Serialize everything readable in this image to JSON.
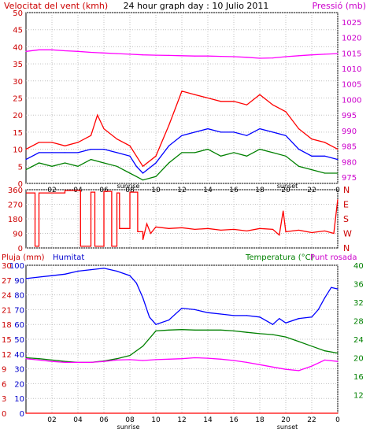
{
  "header": {
    "left_label": "Velocitat del vent (kmh)",
    "center_title": "24 hour graph day : 10 Julio 2011",
    "right_label": "Pressió (mb)"
  },
  "colors": {
    "wind_gust": "#ff0000",
    "wind_avg": "#0000ff",
    "wind_low": "#008000",
    "pressure": "#ff00ff",
    "direction": "#ff0000",
    "humidity": "#0000ff",
    "temperature": "#008000",
    "dewpoint": "#ff00ff",
    "rain": "#ff0000",
    "axis_dark_red": "#cc0000",
    "axis_magenta": "#cc00cc",
    "axis_blue": "#0000cc",
    "axis_green": "#008000",
    "grid": "#c0c0c0"
  },
  "chart_data": [
    {
      "type": "line",
      "panel": "wind-pressure",
      "ylabel_left": "Velocitat del vent (kmh)",
      "ylabel_right": "Pressió (mb)",
      "left_ticks": [
        0,
        5,
        10,
        15,
        20,
        25,
        30,
        35,
        40,
        45,
        50
      ],
      "right_ticks": [
        975,
        980,
        985,
        990,
        995,
        1000,
        1005,
        1010,
        1015,
        1020,
        1025
      ],
      "ylim_left": [
        0,
        50
      ],
      "ylim_right": [
        973,
        1028
      ],
      "x_ticks": [
        "02",
        "04",
        "06",
        "08",
        "10",
        "12",
        "14",
        "16",
        "18",
        "20",
        "22",
        "0"
      ],
      "annotations": [
        "sunrise",
        "sunset"
      ],
      "grid": true,
      "series": [
        {
          "key": "gust",
          "color": "#ff0000",
          "x": [
            0,
            1,
            2,
            3,
            4,
            5,
            5.5,
            6,
            7,
            8,
            8.5,
            9,
            10,
            11,
            11.5,
            12,
            13,
            14,
            15,
            16,
            17,
            18,
            19,
            20,
            21,
            22,
            23,
            24
          ],
          "values": [
            10,
            12,
            12,
            11,
            12,
            14,
            20,
            16,
            13,
            11,
            8,
            5,
            8,
            17,
            22,
            27,
            26,
            25,
            24,
            24,
            23,
            26,
            23,
            21,
            16,
            13,
            12,
            10
          ]
        },
        {
          "key": "avg",
          "color": "#0000ff",
          "x": [
            0,
            1,
            2,
            3,
            4,
            5,
            6,
            7,
            8,
            8.5,
            9,
            10,
            11,
            12,
            13,
            14,
            15,
            16,
            17,
            18,
            19,
            20,
            21,
            22,
            23,
            24
          ],
          "values": [
            7,
            9,
            9,
            9,
            9,
            10,
            10,
            9,
            8,
            5,
            3,
            6,
            11,
            14,
            15,
            16,
            15,
            15,
            14,
            16,
            15,
            14,
            10,
            8,
            8,
            7
          ]
        },
        {
          "key": "low",
          "color": "#008000",
          "x": [
            0,
            1,
            2,
            3,
            4,
            5,
            6,
            7,
            8,
            8.5,
            9,
            10,
            11,
            12,
            13,
            14,
            15,
            16,
            17,
            18,
            19,
            20,
            21,
            22,
            23,
            24
          ],
          "values": [
            4,
            6,
            5,
            6,
            5,
            7,
            6,
            5,
            3,
            2,
            1,
            2,
            6,
            9,
            9,
            10,
            8,
            9,
            8,
            10,
            9,
            8,
            5,
            4,
            3,
            3
          ]
        },
        {
          "key": "pressure",
          "axis": "right",
          "color": "#ff00ff",
          "x": [
            0,
            1,
            2,
            3,
            4,
            5,
            6,
            7,
            8,
            9,
            10,
            11,
            12,
            13,
            14,
            15,
            16,
            17,
            18,
            19,
            20,
            21,
            22,
            23,
            24
          ],
          "values": [
            1015.5,
            1016,
            1016,
            1015.7,
            1015.5,
            1015.2,
            1015,
            1014.8,
            1014.6,
            1014.4,
            1014.3,
            1014.2,
            1014.1,
            1014,
            1014,
            1013.9,
            1013.8,
            1013.6,
            1013.3,
            1013.4,
            1013.8,
            1014.1,
            1014.4,
            1014.6,
            1014.8
          ]
        }
      ]
    },
    {
      "type": "line",
      "panel": "wind-direction",
      "left_ticks": [
        0,
        90,
        180,
        270,
        360
      ],
      "right_labels": [
        "N",
        "W",
        "S",
        "E",
        "N"
      ],
      "ylim": [
        0,
        360
      ],
      "grid": true,
      "series": [
        {
          "key": "direction",
          "color": "#ff0000",
          "x": [
            0,
            0.7,
            0.7,
            1,
            1,
            3,
            3,
            4.2,
            4.2,
            5,
            5,
            5.3,
            5.3,
            6,
            6,
            6.6,
            6.6,
            7,
            7,
            7.2,
            7.2,
            8,
            8,
            8.6,
            8.6,
            9,
            9,
            9.3,
            9.6,
            10,
            11,
            12,
            13,
            14,
            15,
            16,
            17,
            18,
            19,
            19.5,
            19.8,
            20,
            21,
            22,
            23,
            23.7,
            24
          ],
          "values": [
            340,
            340,
            10,
            10,
            340,
            340,
            355,
            355,
            10,
            10,
            345,
            345,
            10,
            10,
            350,
            350,
            10,
            10,
            340,
            340,
            120,
            120,
            345,
            345,
            100,
            100,
            50,
            150,
            90,
            130,
            120,
            125,
            115,
            120,
            110,
            115,
            105,
            120,
            115,
            80,
            230,
            100,
            110,
            95,
            105,
            90,
            300
          ]
        }
      ]
    },
    {
      "type": "line",
      "panel": "rain-humidity-temperature",
      "ylabel_left": "Pluja (mm)",
      "ylabel_left2": "Humitat",
      "ylabel_right": "Temperatura (°C)",
      "ylabel_right2": "Punt rosada",
      "left_ticks_rain": [
        0,
        3,
        6,
        9,
        12,
        15,
        18,
        21,
        24,
        27,
        30
      ],
      "left_ticks_humidity": [
        0,
        10,
        20,
        30,
        40,
        50,
        60,
        70,
        80,
        90,
        100
      ],
      "right_ticks": [
        12,
        16,
        20,
        24,
        28,
        32,
        36,
        40
      ],
      "ylim_rain": [
        0,
        30
      ],
      "ylim_humidity": [
        0,
        100
      ],
      "ylim_temp": [
        8,
        40
      ],
      "x_ticks": [
        "02",
        "04",
        "06",
        "08",
        "10",
        "12",
        "14",
        "16",
        "18",
        "20",
        "22",
        "0"
      ],
      "annotations": [
        "sunrise",
        "sunset"
      ],
      "grid": true,
      "series": [
        {
          "key": "humidity",
          "color": "#0000ff",
          "x": [
            0,
            1,
            2,
            3,
            4,
            5,
            6,
            7,
            8,
            8.5,
            9,
            9.5,
            10,
            11,
            12,
            13,
            14,
            15,
            16,
            17,
            18,
            19,
            19.5,
            20,
            21,
            22,
            22.5,
            23,
            23.5,
            24
          ],
          "values": [
            91,
            92,
            93,
            94,
            96,
            97,
            98,
            96,
            93,
            88,
            78,
            65,
            60,
            63,
            71,
            70,
            68,
            67,
            66,
            66,
            65,
            60,
            64,
            61,
            64,
            65,
            70,
            78,
            85,
            84
          ]
        },
        {
          "key": "temperature",
          "color": "#008000",
          "x": [
            0,
            1,
            2,
            3,
            4,
            5,
            6,
            7,
            8,
            9,
            10,
            11,
            12,
            13,
            14,
            15,
            16,
            17,
            18,
            19,
            20,
            21,
            22,
            23,
            24
          ],
          "values": [
            20,
            19.8,
            19.5,
            19.2,
            19,
            19,
            19.3,
            19.8,
            20.5,
            22.5,
            25.8,
            26,
            26.1,
            26,
            26,
            26,
            25.8,
            25.5,
            25.2,
            25,
            24.5,
            23.5,
            22.5,
            21.5,
            21
          ]
        },
        {
          "key": "dewpoint",
          "color": "#ff00ff",
          "x": [
            0,
            1,
            2,
            3,
            4,
            5,
            6,
            7,
            8,
            9,
            10,
            11,
            12,
            13,
            14,
            15,
            16,
            17,
            18,
            19,
            20,
            21,
            22,
            23,
            24
          ],
          "values": [
            19.8,
            19.5,
            19.2,
            19,
            19,
            19,
            19.2,
            19.5,
            19.6,
            19.4,
            19.6,
            19.7,
            19.8,
            20,
            19.9,
            19.7,
            19.4,
            19,
            18.5,
            18,
            17.5,
            17.2,
            18.2,
            19.5,
            19.2
          ]
        },
        {
          "key": "rain",
          "axis": "rain",
          "color": "#ff0000",
          "x": [
            0,
            24
          ],
          "values": [
            0,
            0
          ]
        }
      ]
    }
  ],
  "panel3_labels": {
    "rain": "Pluja (mm)",
    "humidity": "Humitat",
    "temperature": "Temperatura (°C)",
    "dewpoint": "Punt rosada"
  }
}
